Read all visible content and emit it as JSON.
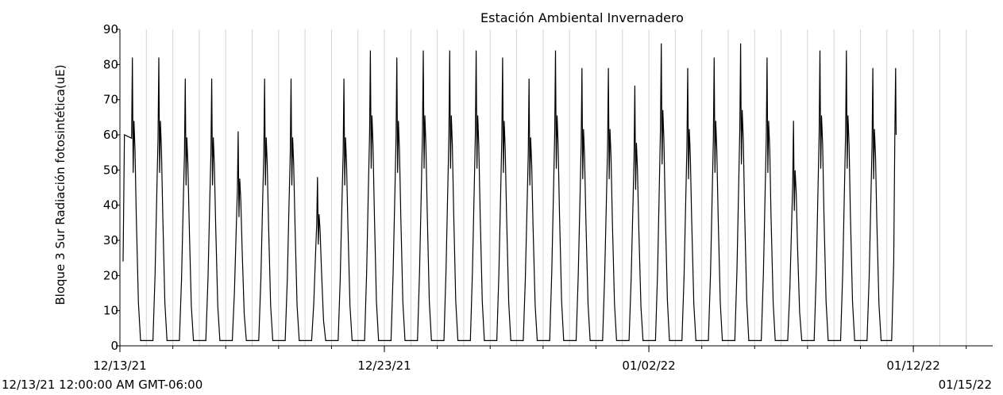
{
  "chart_data": {
    "type": "line",
    "title": "Estación Ambiental Invernadero",
    "xlabel": "",
    "ylabel": "Bloque 3 Sur Radiación fotosintética(uE)",
    "ylim": [
      0,
      90
    ],
    "yticks": [
      0,
      10,
      20,
      30,
      40,
      50,
      60,
      70,
      80,
      90
    ],
    "xlim": [
      "2021-12-13",
      "2022-01-15"
    ],
    "xtick_labels": [
      {
        "date": "2021-12-13",
        "label": "12/13/21"
      },
      {
        "date": "2021-12-23",
        "label": "12/23/21"
      },
      {
        "date": "2022-01-02",
        "label": "01/02/22"
      },
      {
        "date": "2022-01-12",
        "label": "01/12/22"
      }
    ],
    "grid": "vertical",
    "line_color": "#000000",
    "start_label": "12/13/21 12:00:00 AM GMT-06:00",
    "end_label": "01/15/22",
    "series": [
      {
        "x": [
          "2021-12-13",
          "2021-12-14",
          "2021-12-15",
          "2021-12-16",
          "2021-12-17",
          "2021-12-18",
          "2021-12-19",
          "2021-12-20",
          "2021-12-21",
          "2021-12-22",
          "2021-12-23",
          "2021-12-24",
          "2021-12-25",
          "2021-12-26",
          "2021-12-27",
          "2021-12-28",
          "2021-12-29",
          "2021-12-30",
          "2021-12-31",
          "2022-01-01",
          "2022-01-02",
          "2022-01-03",
          "2022-01-04",
          "2022-01-05",
          "2022-01-06",
          "2022-01-07",
          "2022-01-08",
          "2022-01-09",
          "2022-01-10",
          "2022-01-11"
        ],
        "peak": [
          82,
          82,
          76,
          76,
          61,
          76,
          76,
          48,
          76,
          84,
          82,
          84,
          84,
          84,
          82,
          76,
          84,
          79,
          79,
          74,
          86,
          79,
          82,
          86,
          82,
          64,
          84,
          84,
          79,
          0
        ],
        "y": [
          82,
          82,
          76,
          76,
          61,
          76,
          76,
          48,
          76,
          84,
          82,
          84,
          84,
          84,
          82,
          76,
          84,
          79,
          79,
          74,
          86,
          79,
          82,
          86,
          82,
          64,
          84,
          84,
          79,
          0
        ]
      }
    ]
  }
}
